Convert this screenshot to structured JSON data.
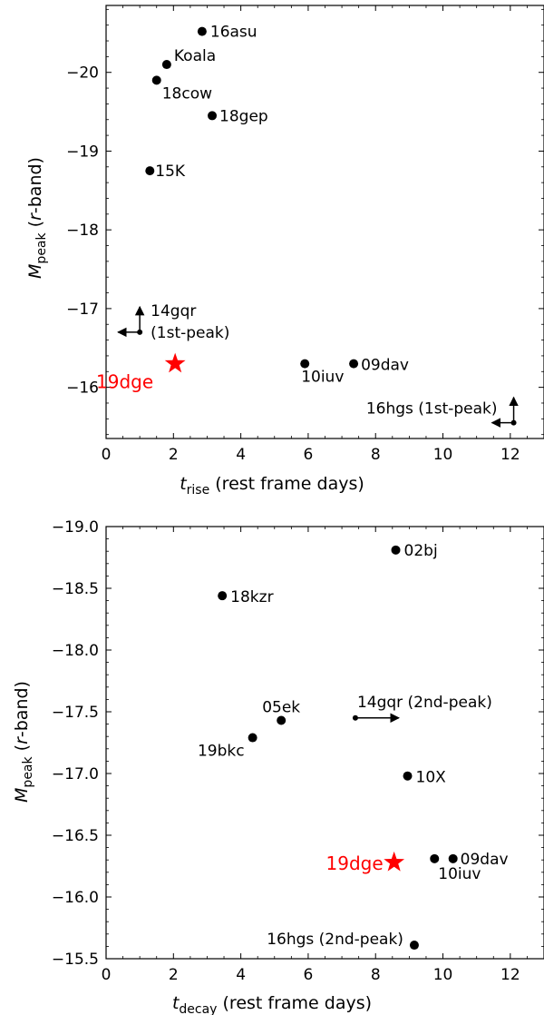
{
  "chart_data": [
    {
      "type": "scatter",
      "xlabel": {
        "main": "t",
        "sub": "rise",
        "rest": " (rest frame days)"
      },
      "ylabel": {
        "main": "M",
        "sub": "peak",
        "open": " (",
        "italic": "r",
        "close": "-band)"
      },
      "xlim": [
        0,
        13
      ],
      "ylim": [
        -15.35,
        -20.85
      ],
      "y_inverted": true,
      "x_ticks": [
        0,
        2,
        4,
        6,
        8,
        10,
        12
      ],
      "x_tick_labels": [
        "0",
        "2",
        "4",
        "6",
        "8",
        "10",
        "12"
      ],
      "y_ticks": [
        -16,
        -17,
        -18,
        -19,
        -20
      ],
      "y_tick_labels": [
        "−16",
        "−17",
        "−18",
        "−19",
        "−20"
      ],
      "points": [
        {
          "name": "16asu",
          "x": 2.85,
          "y": -20.52
        },
        {
          "name": "Koala",
          "x": 1.8,
          "y": -20.1
        },
        {
          "name": "18cow",
          "x": 1.5,
          "y": -19.9
        },
        {
          "name": "18gep",
          "x": 3.15,
          "y": -19.45
        },
        {
          "name": "15K",
          "x": 1.3,
          "y": -18.75
        },
        {
          "name": "14gqr (1st-peak)",
          "label_lines": [
            "14gqr",
            "(1st-peak)"
          ],
          "x": 1.0,
          "y": -16.7,
          "limits": [
            "left",
            "up"
          ]
        },
        {
          "name": "10iuv",
          "x": 5.9,
          "y": -16.3
        },
        {
          "name": "09dav",
          "x": 7.35,
          "y": -16.3
        },
        {
          "name": "16hgs (1st-peak)",
          "x": 12.1,
          "y": -15.55,
          "limits": [
            "left",
            "up"
          ]
        }
      ],
      "highlight": {
        "name": "19dge",
        "x": 2.05,
        "y": -16.3,
        "color": "#ff0000",
        "marker": "star"
      }
    },
    {
      "type": "scatter",
      "xlabel": {
        "main": "t",
        "sub": "decay",
        "rest": " (rest frame days)"
      },
      "ylabel": {
        "main": "M",
        "sub": "peak",
        "open": " (",
        "italic": "r",
        "close": "-band)"
      },
      "xlim": [
        0,
        13
      ],
      "ylim": [
        -15.5,
        -19.0
      ],
      "y_inverted": true,
      "x_ticks": [
        0,
        2,
        4,
        6,
        8,
        10,
        12
      ],
      "x_tick_labels": [
        "0",
        "2",
        "4",
        "6",
        "8",
        "10",
        "12"
      ],
      "y_ticks": [
        -15.5,
        -16.0,
        -16.5,
        -17.0,
        -17.5,
        -18.0,
        -18.5,
        -19.0
      ],
      "y_tick_labels": [
        "−15.5",
        "−16.0",
        "−16.5",
        "−17.0",
        "−17.5",
        "−18.0",
        "−18.5",
        "−19.0"
      ],
      "points": [
        {
          "name": "02bj",
          "x": 8.6,
          "y": -18.81
        },
        {
          "name": "18kzr",
          "x": 3.45,
          "y": -18.44
        },
        {
          "name": "05ek",
          "x": 5.2,
          "y": -17.43
        },
        {
          "name": "19bkc",
          "x": 4.35,
          "y": -17.29
        },
        {
          "name": "14gqr (2nd-peak)",
          "x": 7.4,
          "y": -17.45,
          "limits": [
            "right"
          ]
        },
        {
          "name": "10X",
          "x": 8.95,
          "y": -16.98
        },
        {
          "name": "10iuv",
          "x": 9.75,
          "y": -16.31
        },
        {
          "name": "09dav",
          "x": 10.3,
          "y": -16.31
        },
        {
          "name": "16hgs (2nd-peak)",
          "x": 9.15,
          "y": -15.61
        }
      ],
      "highlight": {
        "name": "19dge",
        "x": 8.55,
        "y": -16.28,
        "color": "#ff0000",
        "marker": "star"
      }
    }
  ]
}
